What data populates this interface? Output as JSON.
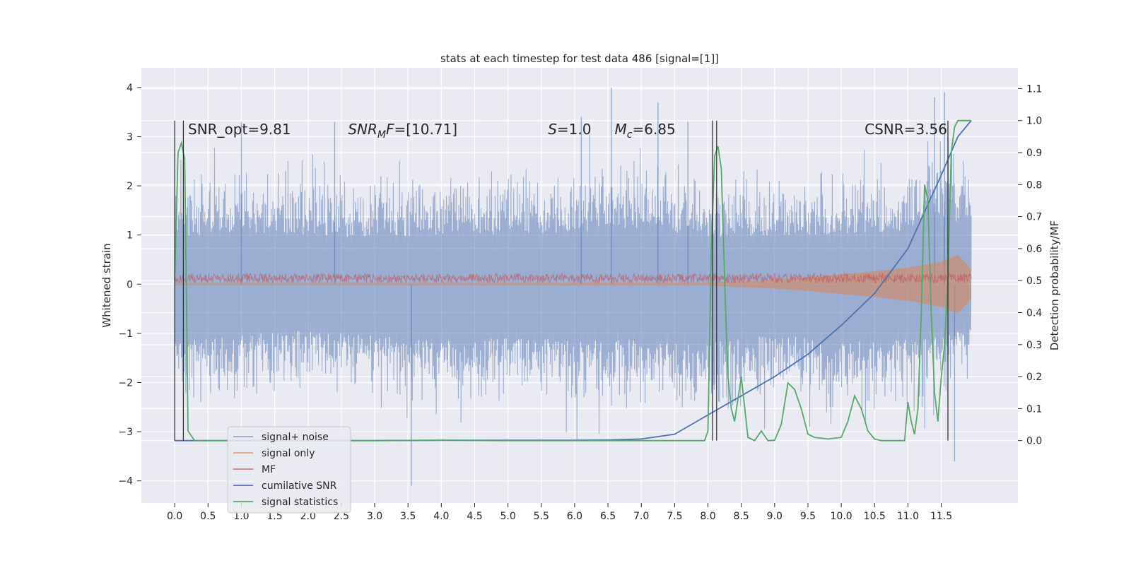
{
  "chart_data": {
    "type": "line",
    "title": "stats at each timestep for test data 486 [signal=[1]]",
    "ylabel": "Whitened strain",
    "y2label": "Detection probability/MF",
    "xlim": [
      -0.5,
      12.65
    ],
    "ylim": [
      -4.45,
      4.4
    ],
    "y2lim": [
      -0.195,
      1.165
    ],
    "x_ticks": [
      "0.0",
      "0.5",
      "1.0",
      "1.5",
      "2.0",
      "2.5",
      "3.0",
      "3.5",
      "4.0",
      "4.5",
      "5.0",
      "5.5",
      "6.0",
      "6.5",
      "7.0",
      "7.5",
      "8.0",
      "8.5",
      "9.0",
      "9.5",
      "10.0",
      "10.5",
      "11.0",
      "11.5"
    ],
    "y_ticks": [
      "4",
      "3",
      "2",
      "1",
      "0",
      "−1",
      "−2",
      "−3",
      "−4"
    ],
    "y2_ticks": [
      "1.1",
      "1.0",
      "0.9",
      "0.8",
      "0.7",
      "0.6",
      "0.5",
      "0.4",
      "0.3",
      "0.2",
      "0.1",
      "0.0"
    ],
    "grid": true,
    "legend_position": "lower-left",
    "annotations": [
      {
        "text": "SNR_opt=9.81",
        "x": 0.2,
        "y": 3.05
      },
      {
        "text": "SNR_MF=[10.71]",
        "x": 2.6,
        "y": 3.05
      },
      {
        "text": "S=1.0",
        "x": 5.6,
        "y": 3.05
      },
      {
        "text": "M_c=6.85",
        "x": 6.6,
        "y": 3.05
      },
      {
        "text": "CSNR=3.56",
        "x": 10.35,
        "y": 3.05
      }
    ],
    "detection_markers_x": [
      0.0,
      0.13,
      8.07,
      8.13,
      11.6
    ],
    "colors": {
      "signal_noise": "#4c72b0",
      "signal_only": "#dd8452",
      "mf": "#c44e52",
      "cumulative_snr": "#4c72b0",
      "signal_statistics": "#55a868",
      "markers": "#333333",
      "plot_bg": "#eaeaf2"
    },
    "series": [
      {
        "name": "signal+ noise",
        "axis": "left",
        "style": "dense-noise",
        "envelope_x": [
          0.0,
          1.0,
          2.0,
          3.0,
          4.0,
          5.0,
          6.0,
          7.0,
          8.0,
          9.0,
          10.0,
          11.0,
          11.6,
          11.95
        ],
        "envelope_upper": [
          2.8,
          2.9,
          2.8,
          2.7,
          2.9,
          2.8,
          3.0,
          3.3,
          2.7,
          2.8,
          2.9,
          3.1,
          3.9,
          3.2
        ],
        "envelope_lower": [
          -3.4,
          -2.9,
          -2.7,
          -3.0,
          -3.2,
          -3.0,
          -3.3,
          -3.2,
          -3.4,
          -2.9,
          -3.3,
          -3.2,
          -3.0,
          -2.2
        ],
        "peak_x": [
          1.0,
          2.4,
          3.55,
          6.55,
          6.1,
          7.25,
          7.7,
          11.4,
          11.55,
          11.7
        ],
        "peak_y": [
          3.3,
          3.3,
          -4.1,
          4.0,
          3.4,
          3.7,
          3.3,
          3.8,
          3.9,
          -3.6
        ]
      },
      {
        "name": "signal only",
        "axis": "left",
        "style": "band",
        "x": [
          0.0,
          8.0,
          8.5,
          9.0,
          9.5,
          10.0,
          10.5,
          11.0,
          11.5,
          11.75,
          11.95
        ],
        "amplitude": [
          0.02,
          0.03,
          0.06,
          0.09,
          0.14,
          0.2,
          0.26,
          0.34,
          0.46,
          0.6,
          0.3
        ]
      },
      {
        "name": "MF",
        "axis": "left",
        "style": "noise-band",
        "center": 0.12,
        "amplitude": 0.12
      },
      {
        "name": "cumilative SNR",
        "axis": "right",
        "x": [
          0.0,
          1.0,
          2.0,
          3.0,
          4.0,
          5.0,
          6.0,
          6.5,
          7.0,
          7.5,
          8.0,
          8.5,
          9.0,
          9.5,
          10.0,
          10.5,
          11.0,
          11.5,
          11.75,
          11.95
        ],
        "values": [
          0.0,
          0.0,
          0.0,
          0.0,
          0.001,
          0.001,
          0.001,
          0.002,
          0.005,
          0.02,
          0.08,
          0.14,
          0.2,
          0.27,
          0.36,
          0.46,
          0.6,
          0.83,
          0.95,
          1.0
        ]
      },
      {
        "name": "signal statistics",
        "axis": "right",
        "x": [
          0.0,
          0.05,
          0.1,
          0.15,
          0.2,
          0.3,
          0.5,
          1.0,
          2.0,
          3.0,
          4.0,
          5.0,
          6.0,
          7.0,
          7.5,
          7.95,
          8.0,
          8.05,
          8.1,
          8.15,
          8.2,
          8.25,
          8.3,
          8.35,
          8.4,
          8.5,
          8.6,
          8.7,
          8.8,
          8.9,
          9.0,
          9.1,
          9.2,
          9.3,
          9.4,
          9.5,
          9.6,
          9.8,
          10.0,
          10.1,
          10.2,
          10.3,
          10.4,
          10.5,
          10.6,
          10.8,
          10.9,
          10.95,
          11.0,
          11.05,
          11.1,
          11.15,
          11.2,
          11.25,
          11.3,
          11.35,
          11.4,
          11.45,
          11.5,
          11.55,
          11.6,
          11.65,
          11.7,
          11.75,
          11.8,
          11.95
        ],
        "values": [
          0.5,
          0.9,
          0.93,
          0.88,
          0.03,
          0.0,
          0.0,
          0.0,
          0.0,
          0.0,
          0.001,
          0.0,
          0.0,
          0.0,
          0.0,
          0.0,
          0.03,
          0.6,
          0.89,
          0.92,
          0.85,
          0.5,
          0.2,
          0.1,
          0.06,
          0.2,
          0.01,
          0.0,
          0.03,
          0.0,
          0.001,
          0.05,
          0.18,
          0.16,
          0.1,
          0.02,
          0.01,
          0.005,
          0.01,
          0.06,
          0.14,
          0.1,
          0.03,
          0.005,
          0.0,
          0.0,
          0.0,
          0.0,
          0.12,
          0.06,
          0.02,
          0.1,
          0.4,
          0.8,
          0.75,
          0.4,
          0.15,
          0.06,
          0.2,
          0.3,
          0.5,
          0.9,
          0.98,
          1.0,
          1.0,
          1.0
        ]
      }
    ]
  }
}
